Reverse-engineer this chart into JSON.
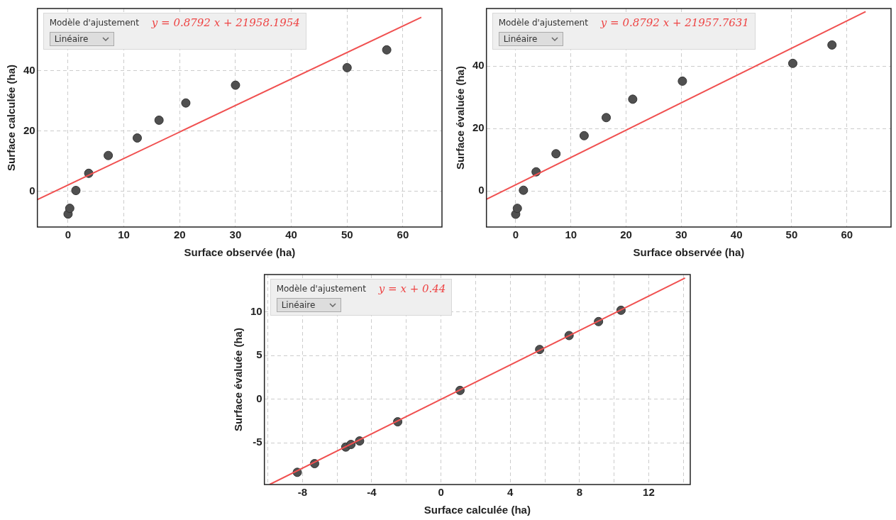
{
  "chart_data": [
    {
      "type": "scatter",
      "xlabel": "Surface observée (ha)",
      "ylabel": "Surface calculée (ha)",
      "xlim": [
        -5.5,
        67
      ],
      "ylim": [
        -11.8,
        60.6
      ],
      "xticks": [
        0,
        10,
        20,
        30,
        40,
        50,
        60
      ],
      "yticks": [
        0,
        20,
        40
      ],
      "grid": true,
      "legend": false,
      "annotations": [
        "Modèle d'ajustement",
        "Linéaire",
        "y = 0.8792 x + 21958.1954"
      ],
      "series": [
        {
          "color": "#505050",
          "marker": "circle",
          "x": [
            0,
            0.3,
            1.4,
            3.7,
            7.2,
            12.4,
            16.3,
            21.1,
            30.0,
            50.0,
            57.1
          ],
          "values": [
            -7.5,
            -5.6,
            0.3,
            6.0,
            11.9,
            17.7,
            23.6,
            29.3,
            35.2,
            41.0,
            46.9
          ]
        },
        {
          "type": "line",
          "color": "#f05050",
          "marker": "none",
          "x": [
            -5.5,
            63.3
          ],
          "values": [
            -2.7,
            57.7
          ]
        }
      ]
    },
    {
      "type": "scatter",
      "xlabel": "Surface observée (ha)",
      "ylabel": "Surface évaluée (ha)",
      "xlim": [
        -5.3,
        68
      ],
      "ylim": [
        -11.6,
        58.5
      ],
      "xticks": [
        0,
        10,
        20,
        30,
        40,
        50,
        60
      ],
      "yticks": [
        0,
        20,
        40
      ],
      "grid": true,
      "legend": false,
      "annotations": [
        "Modèle d'ajustement",
        "Linéaire",
        "y = 0.8792 x + 21957.7631"
      ],
      "series": [
        {
          "color": "#505050",
          "marker": "circle",
          "x": [
            0,
            0.3,
            1.4,
            3.7,
            7.3,
            12.4,
            16.4,
            21.2,
            30.2,
            50.2,
            57.3
          ],
          "values": [
            -7.5,
            -5.6,
            0.2,
            6.1,
            11.9,
            17.7,
            23.5,
            29.4,
            35.2,
            40.9,
            46.8
          ]
        },
        {
          "type": "line",
          "color": "#f05050",
          "marker": "none",
          "x": [
            -5.3,
            63.4
          ],
          "values": [
            -2.7,
            57.5
          ]
        }
      ]
    },
    {
      "type": "scatter",
      "xlabel": "Surface calculée (ha)",
      "ylabel": "Surface évaluée (ha)",
      "xlim": [
        -10.2,
        14.4
      ],
      "ylim": [
        -9.8,
        14.3
      ],
      "xticks": [
        {
          "value": -10,
          "label": null
        },
        -8,
        {
          "value": -6,
          "label": null
        },
        -4,
        {
          "value": -2,
          "label": null
        },
        0,
        {
          "value": 2,
          "label": null
        },
        4,
        {
          "value": 6,
          "label": null
        },
        8,
        {
          "value": 10,
          "label": null
        },
        12,
        {
          "value": 14,
          "label": null
        }
      ],
      "yticks": [
        -5,
        0,
        5,
        10
      ],
      "grid": true,
      "legend": false,
      "annotations": [
        "Modèle d'ajustement",
        "Linéaire",
        "y = x + 0.44"
      ],
      "series": [
        {
          "color": "#505050",
          "marker": "circle",
          "x": [
            -8.3,
            -7.3,
            -5.5,
            -5.2,
            -4.7,
            -2.5,
            1.1,
            5.7,
            7.4,
            9.1,
            10.4
          ],
          "values": [
            -8.4,
            -7.4,
            -5.5,
            -5.2,
            -4.8,
            -2.6,
            1.0,
            5.7,
            7.3,
            8.9,
            10.2
          ]
        },
        {
          "type": "line",
          "color": "#f05050",
          "marker": "none",
          "x": [
            -9.9,
            14.1
          ],
          "values": [
            -9.8,
            13.9
          ]
        }
      ]
    }
  ]
}
